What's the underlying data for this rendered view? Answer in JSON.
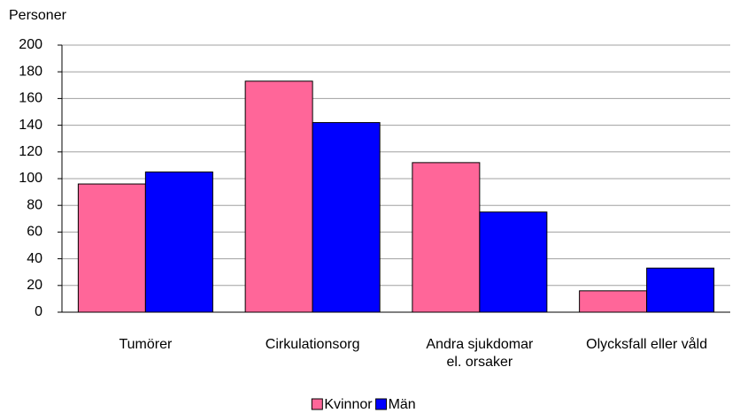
{
  "chart_data": {
    "type": "bar",
    "y_label": "Personer",
    "categories": [
      "Tumörer",
      "Cirkulationsorg",
      "Andra sjukdomar\nel. orsaker",
      "Olycksfall eller våld"
    ],
    "series": [
      {
        "name": "Kvinnor",
        "color": "#ff6699",
        "values": [
          96,
          173,
          112,
          16
        ]
      },
      {
        "name": "Män",
        "color": "#0000ff",
        "values": [
          105,
          142,
          75,
          33
        ]
      }
    ],
    "ylim": [
      0,
      200
    ],
    "yticks": [
      0,
      20,
      40,
      60,
      80,
      100,
      120,
      140,
      160,
      180,
      200
    ],
    "grid": true,
    "legend": "bottom"
  }
}
